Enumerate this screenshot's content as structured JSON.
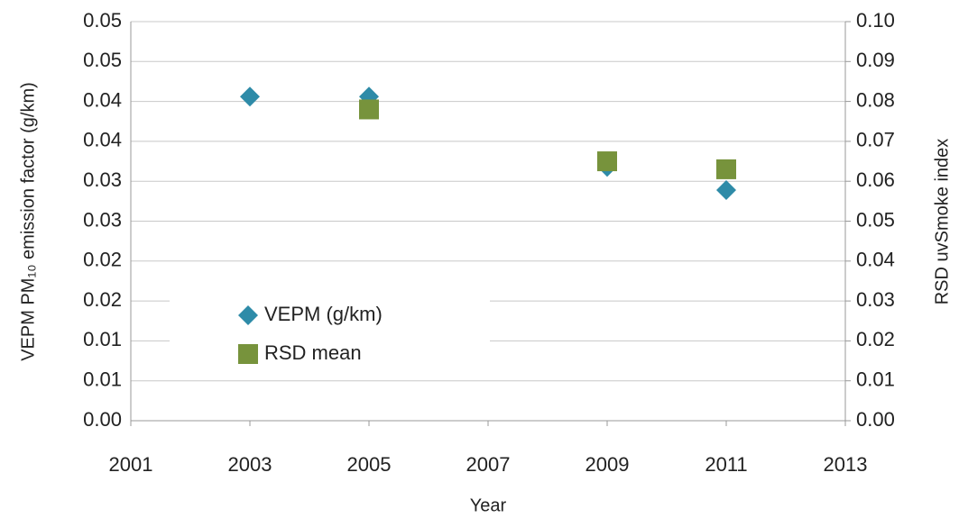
{
  "chart_data": {
    "type": "scatter",
    "x_label": "Year",
    "y_label": "VEPM PM₁₀ emission factor (g/km)",
    "y2_label": "RSD uvSmoke index",
    "xlim": [
      2001,
      2013
    ],
    "xticks": [
      2001,
      2003,
      2005,
      2007,
      2009,
      2011,
      2013
    ],
    "ylim": [
      0,
      0.05
    ],
    "yticks": [
      {
        "value": 0,
        "label": "0.00"
      },
      {
        "value": 0.005,
        "label": "0.01"
      },
      {
        "value": 0.01,
        "label": "0.01"
      },
      {
        "value": 0.015,
        "label": "0.02"
      },
      {
        "value": 0.02,
        "label": "0.02"
      },
      {
        "value": 0.025,
        "label": "0.03"
      },
      {
        "value": 0.03,
        "label": "0.03"
      },
      {
        "value": 0.035,
        "label": "0.04"
      },
      {
        "value": 0.04,
        "label": "0.04"
      },
      {
        "value": 0.045,
        "label": "0.05"
      },
      {
        "value": 0.05,
        "label": "0.05"
      }
    ],
    "y2lim": [
      0,
      0.1
    ],
    "y2ticks": [
      {
        "value": 0,
        "label": "0.00"
      },
      {
        "value": 0.01,
        "label": "0.01"
      },
      {
        "value": 0.02,
        "label": "0.02"
      },
      {
        "value": 0.03,
        "label": "0.03"
      },
      {
        "value": 0.04,
        "label": "0.04"
      },
      {
        "value": 0.05,
        "label": "0.05"
      },
      {
        "value": 0.06,
        "label": "0.06"
      },
      {
        "value": 0.07,
        "label": "0.07"
      },
      {
        "value": 0.08,
        "label": "0.08"
      },
      {
        "value": 0.09,
        "label": "0.09"
      },
      {
        "value": 0.1,
        "label": "0.10"
      }
    ],
    "grid": true,
    "legend": "left",
    "series": [
      {
        "name": "VEPM (g/km)",
        "color": "#2e8ba8",
        "marker": "diamond",
        "axis": "y",
        "x": [
          2003,
          2005,
          2009,
          2011
        ],
        "values": [
          0.0406,
          0.0406,
          0.0318,
          0.0289
        ]
      },
      {
        "name": "RSD mean",
        "color": "#77933c",
        "marker": "square",
        "axis": "y2",
        "x": [
          2005,
          2009,
          2011
        ],
        "values": [
          0.078,
          0.065,
          0.063
        ]
      }
    ]
  }
}
